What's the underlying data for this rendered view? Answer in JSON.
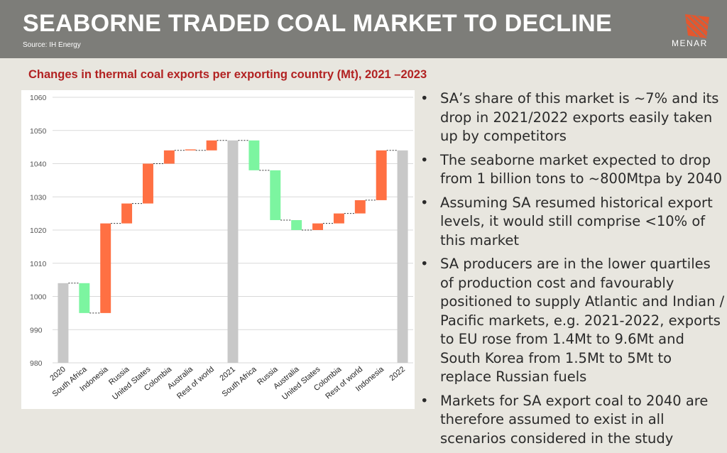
{
  "header": {
    "title": "SEABORNE TRADED COAL MARKET TO DECLINE",
    "source": "Source: IH Energy",
    "logo_text": "MENAR"
  },
  "subtitle": "Changes in thermal coal exports per exporting country (Mt), 2021 –2023",
  "colors": {
    "total": "#c8c8c8",
    "increase": "#ff7043",
    "decrease": "#7cf5a0",
    "accent": "#b22222",
    "logo": "#e4572e"
  },
  "chart_data": {
    "type": "bar",
    "subtype": "waterfall",
    "ylim": [
      980,
      1060
    ],
    "yticks": [
      980,
      990,
      1000,
      1010,
      1020,
      1030,
      1040,
      1050,
      1060
    ],
    "categories": [
      "2020",
      "South Africa",
      "Indonesia",
      "Russia",
      "United States",
      "Colombia",
      "Australia",
      "Rest of world",
      "2021",
      "South Africa",
      "Russia",
      "Australia",
      "United States",
      "Colombia",
      "Rest of world",
      "Indonesia",
      "2022"
    ],
    "bars": [
      {
        "label": "2020",
        "kind": "total",
        "start": 980,
        "end": 1004
      },
      {
        "label": "South Africa",
        "kind": "decrease",
        "start": 1004,
        "end": 995
      },
      {
        "label": "Indonesia",
        "kind": "increase",
        "start": 995,
        "end": 1022
      },
      {
        "label": "Russia",
        "kind": "increase",
        "start": 1022,
        "end": 1028
      },
      {
        "label": "United States",
        "kind": "increase",
        "start": 1028,
        "end": 1040
      },
      {
        "label": "Colombia",
        "kind": "increase",
        "start": 1040,
        "end": 1044
      },
      {
        "label": "Australia",
        "kind": "increase",
        "start": 1044,
        "end": 1044.3
      },
      {
        "label": "Rest of world",
        "kind": "increase",
        "start": 1044,
        "end": 1047
      },
      {
        "label": "2021",
        "kind": "total",
        "start": 980,
        "end": 1047
      },
      {
        "label": "South Africa",
        "kind": "decrease",
        "start": 1047,
        "end": 1038
      },
      {
        "label": "Russia",
        "kind": "decrease",
        "start": 1038,
        "end": 1023
      },
      {
        "label": "Australia",
        "kind": "decrease",
        "start": 1023,
        "end": 1020
      },
      {
        "label": "United States",
        "kind": "increase",
        "start": 1020,
        "end": 1022
      },
      {
        "label": "Colombia",
        "kind": "increase",
        "start": 1022,
        "end": 1025
      },
      {
        "label": "Rest of world",
        "kind": "increase",
        "start": 1025,
        "end": 1029
      },
      {
        "label": "Indonesia",
        "kind": "increase",
        "start": 1029,
        "end": 1044
      },
      {
        "label": "2022",
        "kind": "total",
        "start": 980,
        "end": 1044
      }
    ],
    "title": "Changes in thermal coal exports per exporting country (Mt), 2021 –2023",
    "xlabel": "",
    "ylabel": "",
    "grid": true
  },
  "bullets": [
    "SA’s share of this market is ~7% and its drop in 2021/2022 exports easily taken up by competitors",
    "The seaborne market expected to drop from 1 billion tons to ~800Mtpa by 2040",
    "Assuming SA resumed historical export levels, it would still comprise <10% of this market",
    "SA producers are in the lower quartiles of production cost and favourably positioned to supply Atlantic and Indian / Pacific markets, e.g. 2021-2022, exports to EU rose from 1.4Mt to 9.6Mt and South Korea from 1.5Mt to 5Mt to replace Russian fuels",
    "Markets for SA export coal to 2040 are therefore assumed to exist in all scenarios considered in the study"
  ],
  "bullet_symbol": "•"
}
